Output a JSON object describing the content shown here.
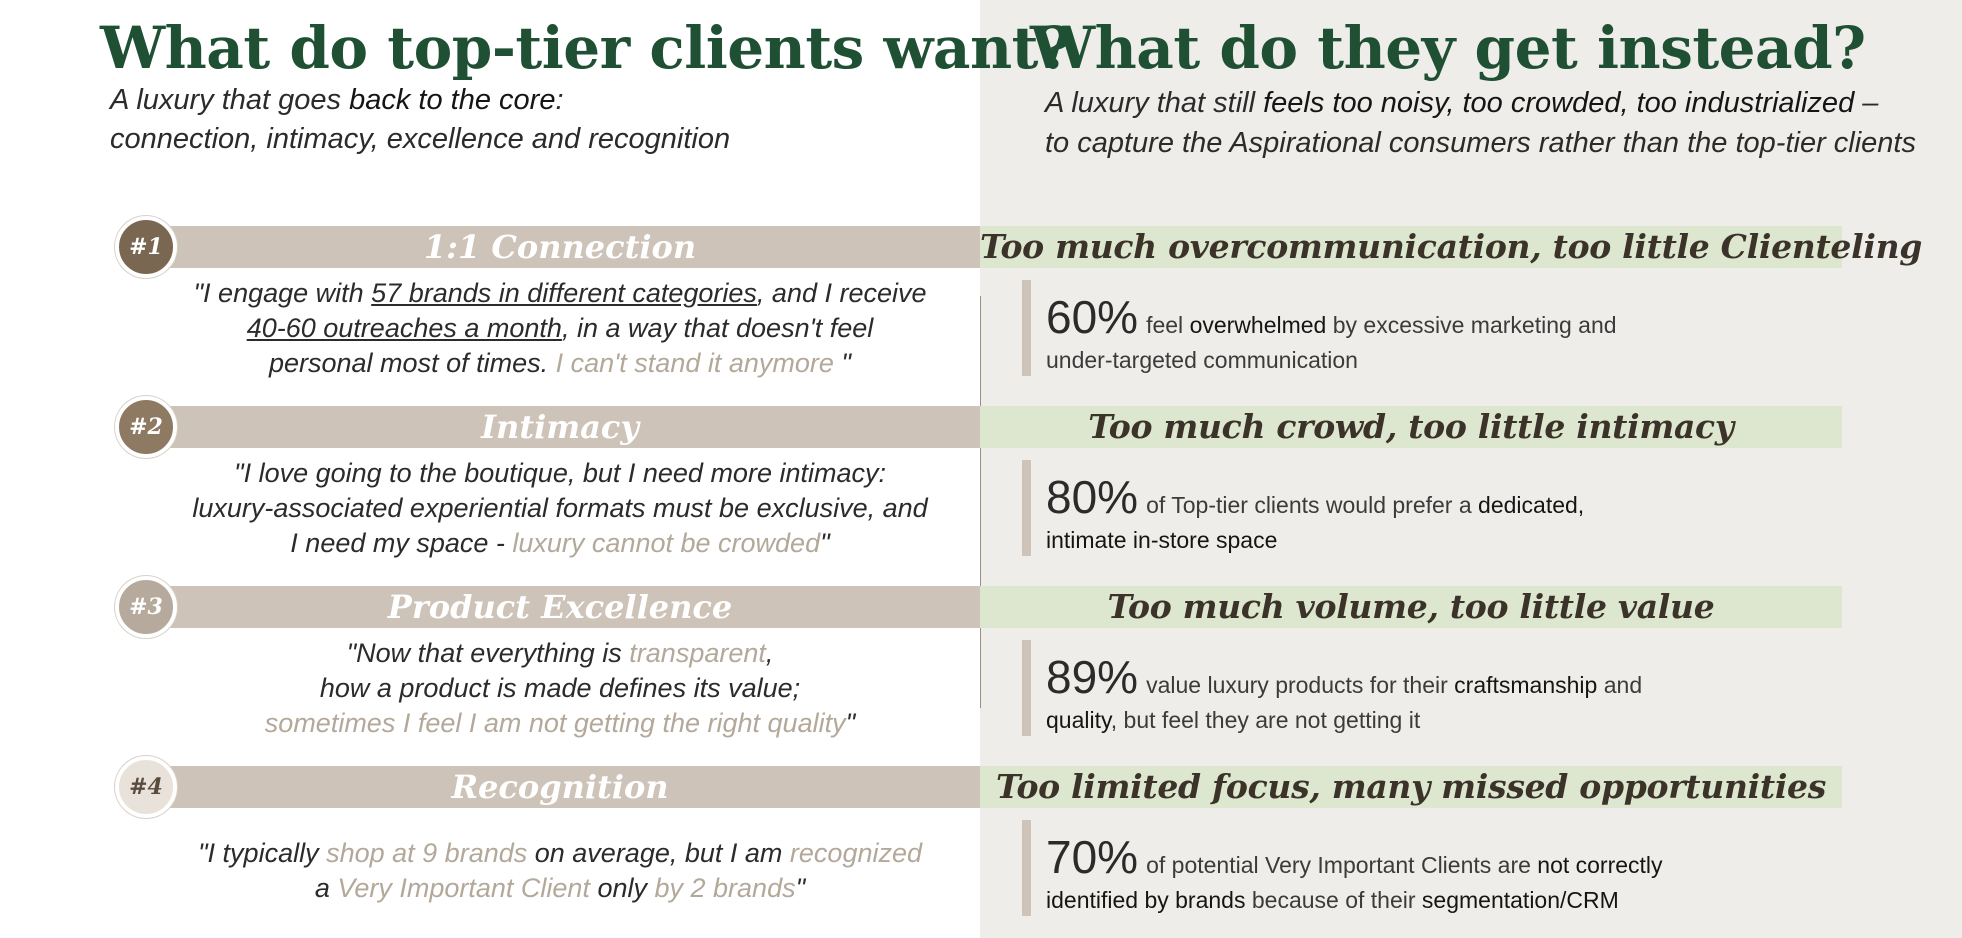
{
  "left": {
    "title": "What do top-tier clients want?",
    "subtitle_l1_a": "A luxury that goes ",
    "subtitle_l1_b": "back to the core",
    "subtitle_l1_c": ":",
    "subtitle_l2": "connection, intimacy, excellence and recognition"
  },
  "right": {
    "title": "What do they get instead?",
    "subtitle_l1_a": "A luxury that still ",
    "subtitle_l1_b": "feels",
    "subtitle_l1_c": " too noisy, too crowded, too industrialized",
    "subtitle_l1_d": " –",
    "subtitle_l2": "to capture the Aspirational consumers rather than the top-tier clients"
  },
  "items": [
    {
      "num": "#1",
      "label": "1:1 Connection",
      "badge_color": "#7a6752",
      "quote": [
        [
          {
            "t": "\"I engage with "
          },
          {
            "t": "57 brands in different categories",
            "c": "ul"
          },
          {
            "t": ", and I receive"
          }
        ],
        [
          {
            "t": "40-60 outreaches a month",
            "c": "ul"
          },
          {
            "t": ", in a way that doesn't feel"
          }
        ],
        [
          {
            "t": "personal most of times. "
          },
          {
            "t": "I can't stand it anymore ",
            "c": "hl"
          },
          {
            "t": "\""
          }
        ]
      ],
      "problem": "Too much overcommunication, too little Clienteling",
      "stat_pct": "60%",
      "stat_line1": [
        {
          "t": "feel "
        },
        {
          "t": "overwhelmed",
          "c": "b"
        },
        {
          "t": " by excessive marketing and"
        }
      ],
      "stat_line2": [
        {
          "t": "under-targeted communication"
        }
      ]
    },
    {
      "num": "#2",
      "label": "Intimacy",
      "badge_color": "#8e7a63",
      "quote": [
        [
          {
            "t": "\"I love going to the boutique, but I need more intimacy:"
          }
        ],
        [
          {
            "t": "luxury-associated experiential formats must be exclusive, and"
          }
        ],
        [
          {
            "t": "I need my space - "
          },
          {
            "t": "luxury cannot be crowded",
            "c": "hl"
          },
          {
            "t": "\""
          }
        ]
      ],
      "problem": "Too much crowd, too little intimacy",
      "stat_pct": "80%",
      "stat_line1": [
        {
          "t": "of Top-tier clients would prefer a "
        },
        {
          "t": "dedicated,",
          "c": "b"
        }
      ],
      "stat_line2": [
        {
          "t": "intimate in-store space",
          "c": "b"
        }
      ]
    },
    {
      "num": "#3",
      "label": "Product Excellence",
      "badge_color": "#b5aa9c",
      "quote": [
        [
          {
            "t": "\"Now that everything is "
          },
          {
            "t": "transparent",
            "c": "hl"
          },
          {
            "t": ","
          }
        ],
        [
          {
            "t": "how a product is made defines its value;"
          }
        ],
        [
          {
            "t": "sometimes I feel I am not getting the right quality",
            "c": "hl"
          },
          {
            "t": "\""
          }
        ]
      ],
      "problem": "Too much volume, too little value",
      "stat_pct": "89%",
      "stat_line1": [
        {
          "t": "value luxury products for their "
        },
        {
          "t": "craftsmanship",
          "c": "b"
        },
        {
          "t": " and"
        }
      ],
      "stat_line2": [
        {
          "t": "quality",
          "c": "b"
        },
        {
          "t": ", but feel they are not getting it"
        }
      ]
    },
    {
      "num": "#4",
      "label": "Recognition",
      "badge_color": "#e8e2da",
      "quote": [
        [
          {
            "t": "\"I typically "
          },
          {
            "t": "shop at 9 brands",
            "c": "hl"
          },
          {
            "t": " on average, but I am "
          },
          {
            "t": "recognized",
            "c": "hl"
          }
        ],
        [
          {
            "t": "a "
          },
          {
            "t": "Very Important Client",
            "c": "hl"
          },
          {
            "t": " only "
          },
          {
            "t": "by 2 brands",
            "c": "hl"
          },
          {
            "t": "\""
          }
        ]
      ],
      "problem": "Too limited focus, many missed opportunities",
      "stat_pct": "70%",
      "stat_line1": [
        {
          "t": "of potential Very Important Clients are "
        },
        {
          "t": "not correctly",
          "c": "b"
        }
      ],
      "stat_line2": [
        {
          "t": "identified by brands",
          "c": "b"
        },
        {
          "t": " because of their "
        },
        {
          "t": "segmentation/CRM",
          "c": "b"
        }
      ]
    }
  ]
}
